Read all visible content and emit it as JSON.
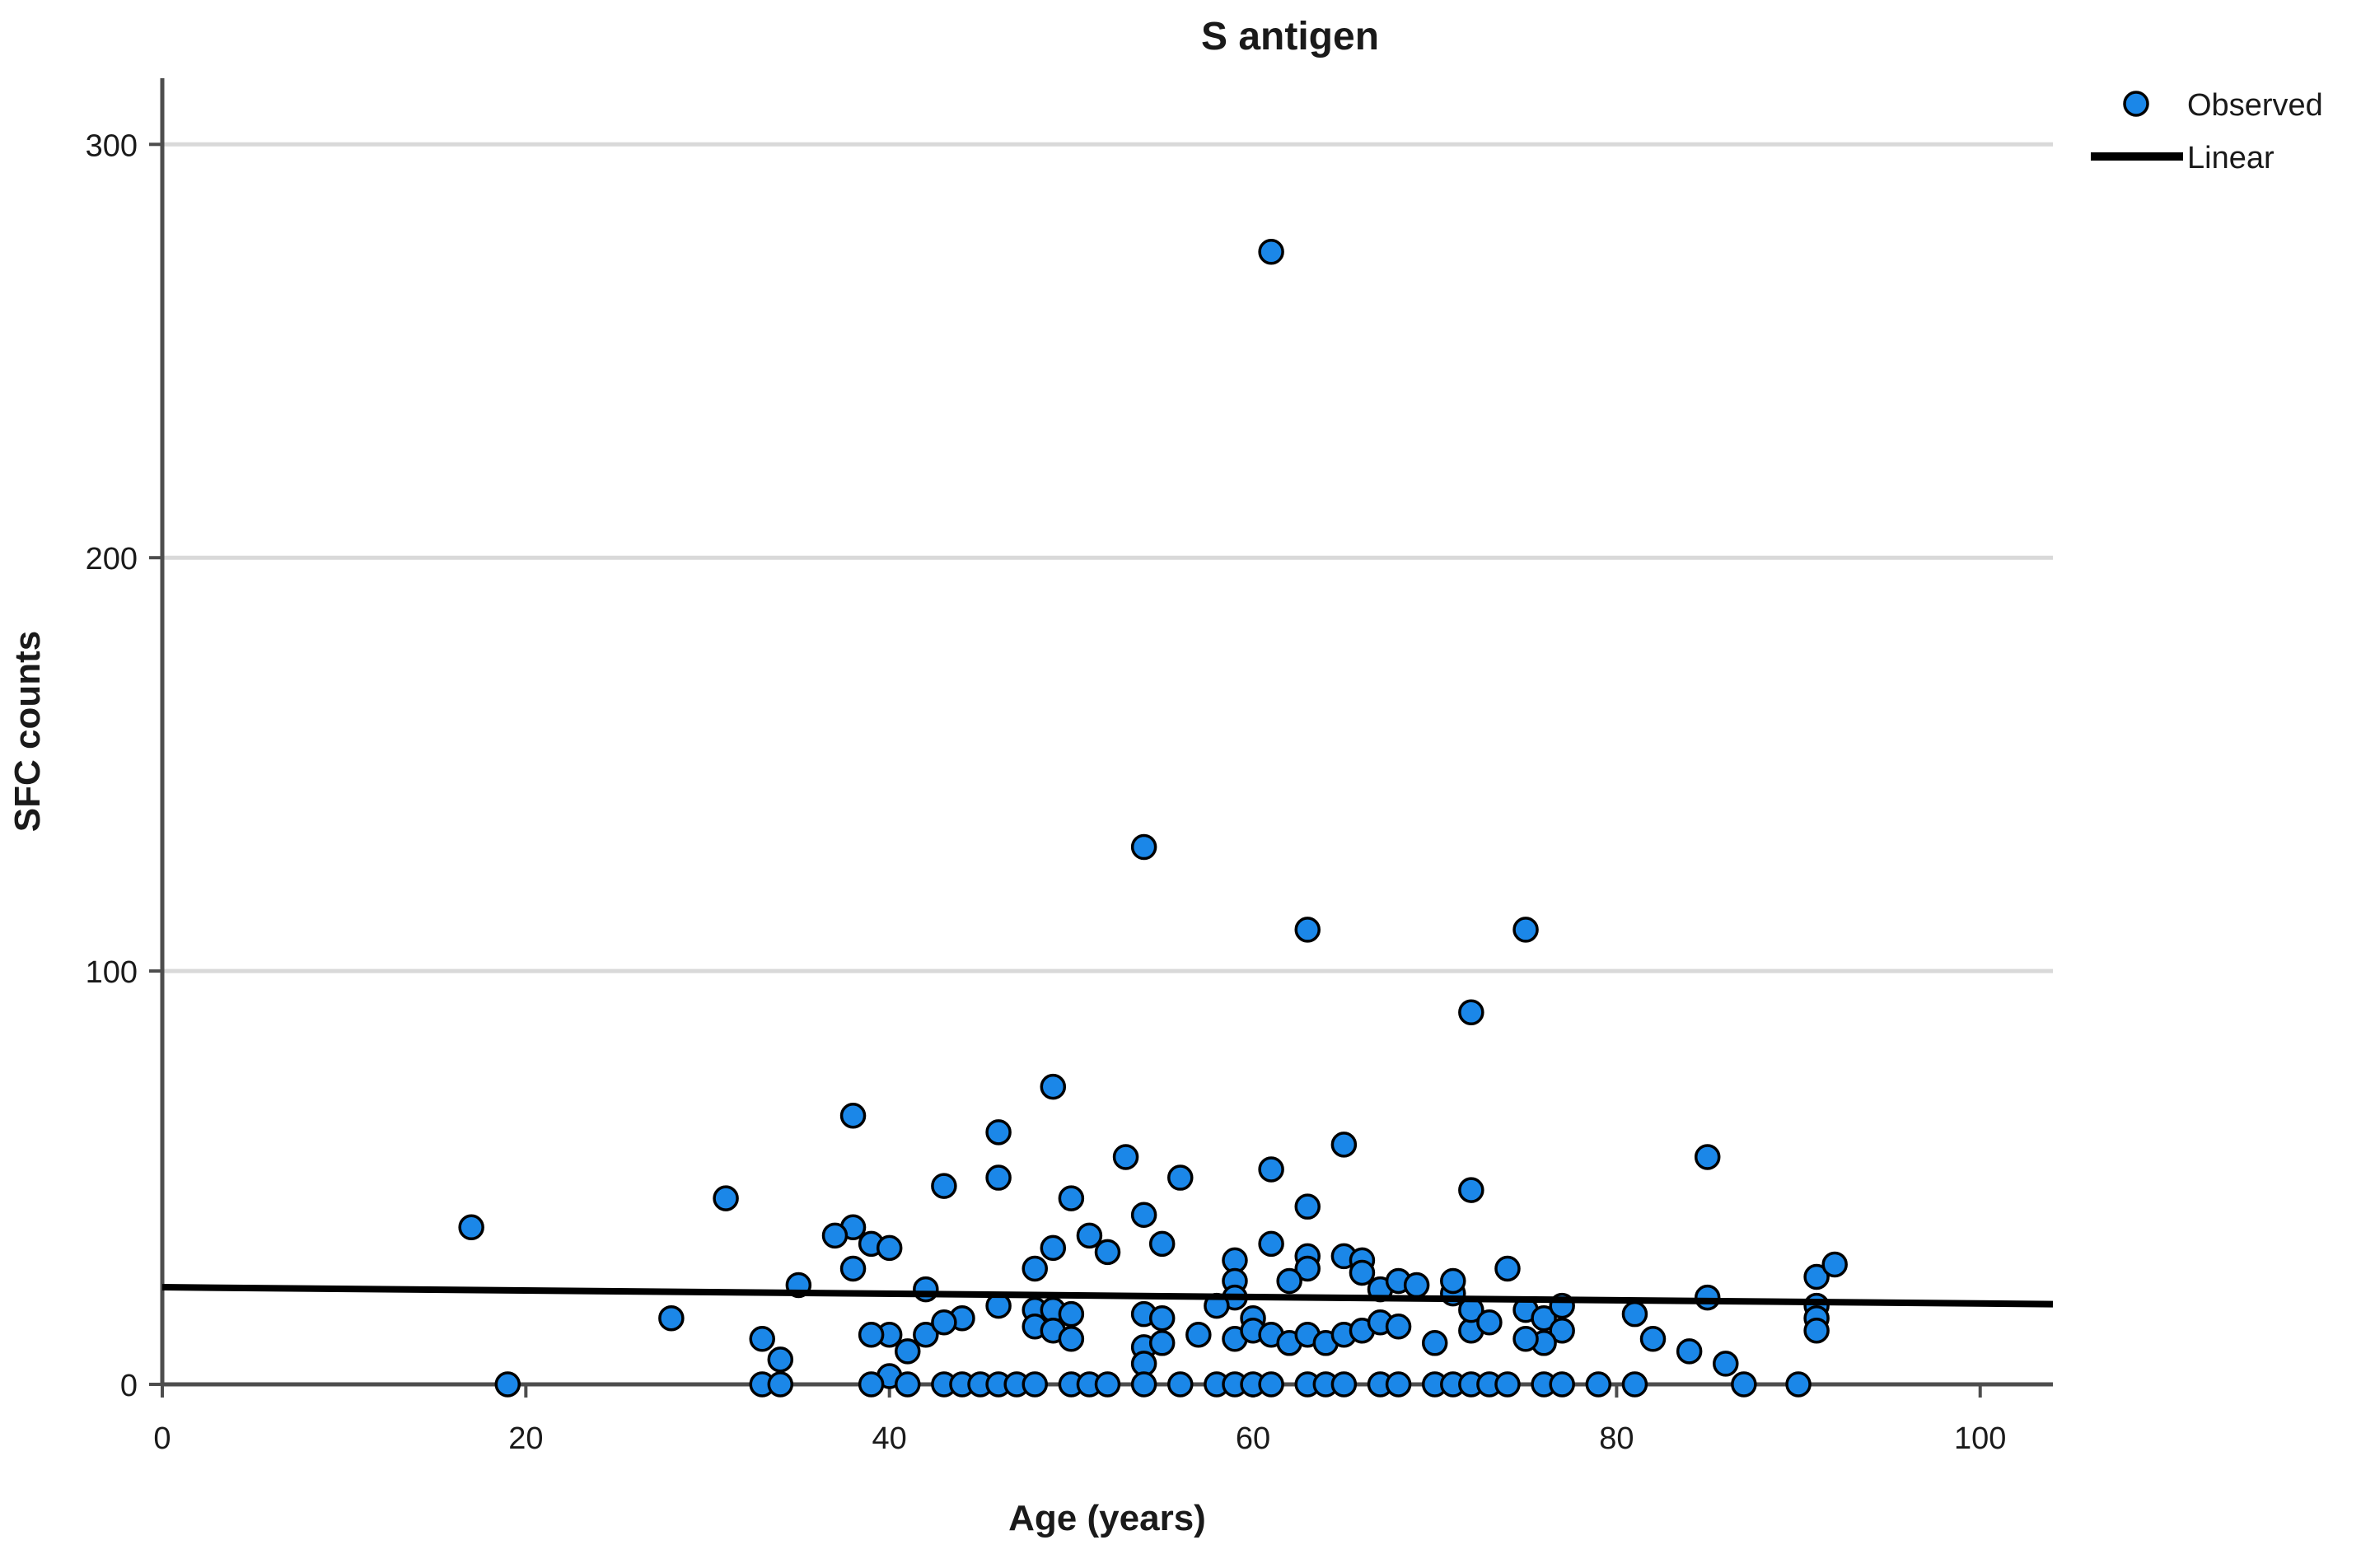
{
  "title": "S antigen",
  "axes": {
    "x_label": "Age (years)",
    "y_label": "SFC counts",
    "x_tick_labels": [
      "0",
      "20",
      "40",
      "60",
      "80",
      "100"
    ],
    "y_tick_labels": [
      "0",
      "100",
      "200",
      "300"
    ]
  },
  "legend": {
    "items": [
      {
        "label": "Observed",
        "marker": "dot-icon"
      },
      {
        "label": "Linear",
        "marker": "line-icon"
      }
    ]
  },
  "colors": {
    "dot_fill": "#1b87e8",
    "dot_stroke": "#000000",
    "trend_line": "#000000",
    "gridline": "#d9d9d9",
    "axis": "#4d4d4d",
    "text": "#1a1a1a",
    "background": "#ffffff"
  },
  "chart_data": {
    "type": "scatter",
    "title": "S antigen",
    "xlabel": "Age (years)",
    "ylabel": "SFC counts",
    "xlim": [
      0,
      104
    ],
    "ylim": [
      0,
      316
    ],
    "x_ticks": [
      0,
      20,
      40,
      60,
      80,
      100
    ],
    "y_ticks": [
      0,
      100,
      200,
      300
    ],
    "grid": "horizontal-only",
    "legend_position": "top-right-outside",
    "legend": [
      "Observed",
      "Linear"
    ],
    "series": [
      {
        "name": "Observed",
        "type": "scatter",
        "points": [
          [
            61,
            274
          ],
          [
            54,
            130
          ],
          [
            63,
            110
          ],
          [
            75,
            110
          ],
          [
            72,
            90
          ],
          [
            49,
            72
          ],
          [
            38,
            65
          ],
          [
            46,
            61
          ],
          [
            85,
            55
          ],
          [
            53,
            55
          ],
          [
            56,
            50
          ],
          [
            46,
            50
          ],
          [
            43,
            48
          ],
          [
            72,
            47
          ],
          [
            31,
            45
          ],
          [
            50,
            45
          ],
          [
            61,
            52
          ],
          [
            65,
            58
          ],
          [
            17,
            38
          ],
          [
            38,
            38
          ],
          [
            37,
            36
          ],
          [
            54,
            41
          ],
          [
            55,
            34
          ],
          [
            52,
            32
          ],
          [
            51,
            36
          ],
          [
            49,
            33
          ],
          [
            48,
            28
          ],
          [
            39,
            34
          ],
          [
            40,
            33
          ],
          [
            38,
            28
          ],
          [
            35,
            24
          ],
          [
            61,
            34
          ],
          [
            63,
            43
          ],
          [
            59,
            30
          ],
          [
            59,
            25
          ],
          [
            59,
            21
          ],
          [
            63,
            31
          ],
          [
            63,
            28
          ],
          [
            62,
            25
          ],
          [
            65,
            31
          ],
          [
            66,
            30
          ],
          [
            66,
            27
          ],
          [
            67,
            23
          ],
          [
            68,
            25
          ],
          [
            69,
            24
          ],
          [
            71,
            22
          ],
          [
            71,
            25
          ],
          [
            74,
            28
          ],
          [
            42,
            23
          ],
          [
            46,
            19
          ],
          [
            48,
            18
          ],
          [
            49,
            18
          ],
          [
            50,
            17
          ],
          [
            48,
            14
          ],
          [
            49,
            13
          ],
          [
            50,
            11
          ],
          [
            44,
            16
          ],
          [
            42,
            12
          ],
          [
            40,
            12
          ],
          [
            39,
            12
          ],
          [
            41,
            8
          ],
          [
            43,
            15
          ],
          [
            28,
            16
          ],
          [
            33,
            11
          ],
          [
            34,
            6
          ],
          [
            54,
            17
          ],
          [
            55,
            16
          ],
          [
            54,
            9
          ],
          [
            55,
            10
          ],
          [
            57,
            12
          ],
          [
            58,
            19
          ],
          [
            59,
            11
          ],
          [
            60,
            16
          ],
          [
            60,
            13
          ],
          [
            61,
            12
          ],
          [
            62,
            10
          ],
          [
            63,
            12
          ],
          [
            64,
            10
          ],
          [
            65,
            12
          ],
          [
            66,
            13
          ],
          [
            67,
            15
          ],
          [
            68,
            14
          ],
          [
            70,
            10
          ],
          [
            72,
            13
          ],
          [
            72,
            18
          ],
          [
            73,
            15
          ],
          [
            75,
            18
          ],
          [
            76,
            16
          ],
          [
            77,
            13
          ],
          [
            76,
            10
          ],
          [
            75,
            11
          ],
          [
            77,
            19
          ],
          [
            81,
            17
          ],
          [
            82,
            11
          ],
          [
            84,
            8
          ],
          [
            86,
            5
          ],
          [
            85,
            21
          ],
          [
            91,
            26
          ],
          [
            92,
            29
          ],
          [
            91,
            19
          ],
          [
            91,
            16
          ],
          [
            91,
            13
          ],
          [
            40,
            2
          ],
          [
            54,
            5
          ],
          [
            19,
            0
          ],
          [
            33,
            0
          ],
          [
            34,
            0
          ],
          [
            39,
            0
          ],
          [
            41,
            0
          ],
          [
            43,
            0
          ],
          [
            44,
            0
          ],
          [
            45,
            0
          ],
          [
            46,
            0
          ],
          [
            47,
            0
          ],
          [
            48,
            0
          ],
          [
            50,
            0
          ],
          [
            51,
            0
          ],
          [
            52,
            0
          ],
          [
            54,
            0
          ],
          [
            56,
            0
          ],
          [
            58,
            0
          ],
          [
            59,
            0
          ],
          [
            60,
            0
          ],
          [
            61,
            0
          ],
          [
            63,
            0
          ],
          [
            64,
            0
          ],
          [
            65,
            0
          ],
          [
            67,
            0
          ],
          [
            68,
            0
          ],
          [
            70,
            0
          ],
          [
            71,
            0
          ],
          [
            72,
            0
          ],
          [
            73,
            0
          ],
          [
            74,
            0
          ],
          [
            76,
            0
          ],
          [
            77,
            0
          ],
          [
            79,
            0
          ],
          [
            81,
            0
          ],
          [
            87,
            0
          ],
          [
            90,
            0
          ]
        ]
      },
      {
        "name": "Linear",
        "type": "line",
        "x": [
          0,
          104
        ],
        "y": [
          23.5,
          19.4
        ]
      }
    ]
  }
}
